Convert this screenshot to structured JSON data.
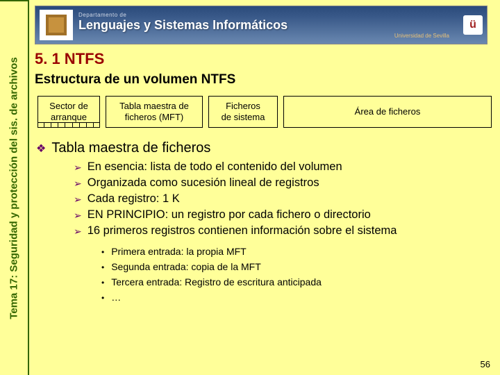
{
  "header": {
    "department": "Departamento de",
    "title": "Lenguajes y Sistemas Informáticos",
    "university": "Universidad de Sevilla",
    "crest_glyph": "ü"
  },
  "sidebar": {
    "topic": "Tema 17: Seguridad y protección del sis. de archivos"
  },
  "slide": {
    "section_number": "5. 1 NTFS",
    "subtitle": "Estructura de un volumen NTFS",
    "page_number": "56"
  },
  "volume_diagram": {
    "boxes": [
      {
        "key": "boot",
        "label": "Sector de\narranque",
        "has_ticks": true,
        "tick_count": 9
      },
      {
        "key": "mft",
        "label": "Tabla maestra de\nficheros (MFT)"
      },
      {
        "key": "sys",
        "label": "Ficheros\nde sistema"
      },
      {
        "key": "area",
        "label": "Área de ficheros"
      }
    ],
    "box_border_color": "#000000",
    "box_bgcolor": "#ffff99"
  },
  "bullets": {
    "level1": {
      "marker": "❖",
      "marker_color": "#660066",
      "text": "Tabla maestra de ficheros"
    },
    "level2": {
      "marker": "➢",
      "marker_color": "#660066",
      "items": [
        "En esencia: lista de todo el contenido del volumen",
        "Organizada como sucesión lineal de registros",
        "Cada registro: 1 K",
        "EN PRINCIPIO: un registro por cada fichero o directorio",
        "16 primeros registros contienen información sobre el sistema"
      ]
    },
    "level3": {
      "marker": "•",
      "marker_color": "#000000",
      "items": [
        "Primera entrada: la propia MFT",
        "Segunda entrada: copia de la MFT",
        "Tercera entrada: Registro de escritura anticipada",
        "…"
      ]
    }
  },
  "colors": {
    "page_bg": "#ffff99",
    "sidebar_border": "#336600",
    "section_heading": "#990000"
  }
}
